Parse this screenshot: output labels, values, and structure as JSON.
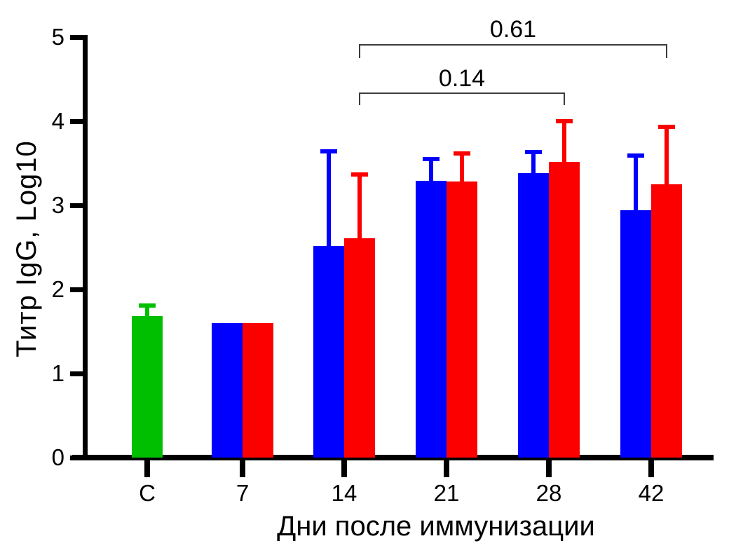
{
  "chart_data": {
    "type": "bar",
    "title": "",
    "xlabel": "Дни после иммунизации",
    "ylabel": "Титр IgG, Log10",
    "ylim": [
      0,
      5
    ],
    "yticks": [
      "0",
      "1",
      "2",
      "3",
      "4",
      "5"
    ],
    "grid": "off",
    "legend": "none",
    "categories": [
      "C",
      "7",
      "14",
      "21",
      "28",
      "42"
    ],
    "colors": {
      "green": "#00BE00",
      "blue": "#0000FE",
      "red": "#FC0000"
    },
    "groups": [
      {
        "label": "C",
        "bars": [
          {
            "series": "control",
            "color": "green",
            "value": 1.68,
            "err_top": 1.81
          }
        ]
      },
      {
        "label": "7",
        "bars": [
          {
            "series": "group-1",
            "color": "blue",
            "value": 1.6
          },
          {
            "series": "group-2",
            "color": "red",
            "value": 1.6
          }
        ]
      },
      {
        "label": "14",
        "bars": [
          {
            "series": "group-1",
            "color": "blue",
            "value": 2.52,
            "err_top": 3.64
          },
          {
            "series": "group-2",
            "color": "red",
            "value": 2.61,
            "err_top": 3.37
          }
        ]
      },
      {
        "label": "21",
        "bars": [
          {
            "series": "group-1",
            "color": "blue",
            "value": 3.29,
            "err_top": 3.55
          },
          {
            "series": "group-2",
            "color": "red",
            "value": 3.28,
            "err_top": 3.62
          }
        ]
      },
      {
        "label": "28",
        "bars": [
          {
            "series": "group-1",
            "color": "blue",
            "value": 3.38,
            "err_top": 3.63
          },
          {
            "series": "group-2",
            "color": "red",
            "value": 3.52,
            "err_top": 4.0
          }
        ]
      },
      {
        "label": "42",
        "bars": [
          {
            "series": "group-1",
            "color": "blue",
            "value": 2.94,
            "err_top": 3.59
          },
          {
            "series": "group-2",
            "color": "red",
            "value": 3.25,
            "err_top": 3.93
          }
        ]
      }
    ],
    "annotations": [
      {
        "label": "0.61",
        "from_group": "14",
        "to_group": "42",
        "series": "group-2"
      },
      {
        "label": "0.14",
        "from_group": "14",
        "to_group": "28",
        "series": "group-2"
      }
    ]
  }
}
